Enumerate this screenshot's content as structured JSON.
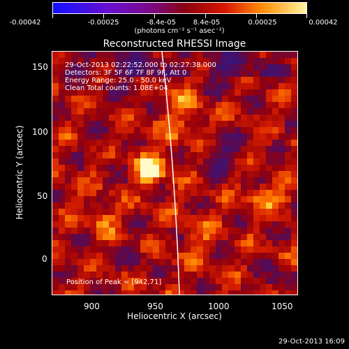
{
  "colorbar": {
    "tick_labels": [
      "-0.00042",
      "-0.00025",
      "-8.4e-05",
      "8.4e-05",
      "0.00025",
      "0.00042"
    ],
    "units": "(photons cm⁻² s⁻¹ asec⁻²)",
    "colors": [
      "#1010ff",
      "#6a0fd0",
      "#7a0a8a",
      "#8a0010",
      "#d81800",
      "#ff8a00",
      "#fff6a0"
    ]
  },
  "title": "Reconstructed RHESSI Image",
  "annotations": {
    "time_range": "29-Oct-2013 02:22:52.000 to 02:27:38.000",
    "detectors": "Detectors: 3F 5F 6F 7F 8F 9F, Att 0",
    "energy": "Energy Range: 25.0 - 50.0 keV",
    "method": "Clean    Total counts: 1.08E+04",
    "peak": "Position of Peak = [942,71]"
  },
  "axes": {
    "xlabel": "Heliocentric X (arcsec)",
    "ylabel": "Heliocentric Y (arcsec)",
    "xlim": [
      866,
      1060
    ],
    "ylim": [
      -28,
      164
    ],
    "xticks": [
      "900",
      "950",
      "1000",
      "1050"
    ],
    "yticks": [
      "0",
      "50",
      "100",
      "150"
    ]
  },
  "footer": {
    "date": "29-Oct-2013 16:09"
  }
}
